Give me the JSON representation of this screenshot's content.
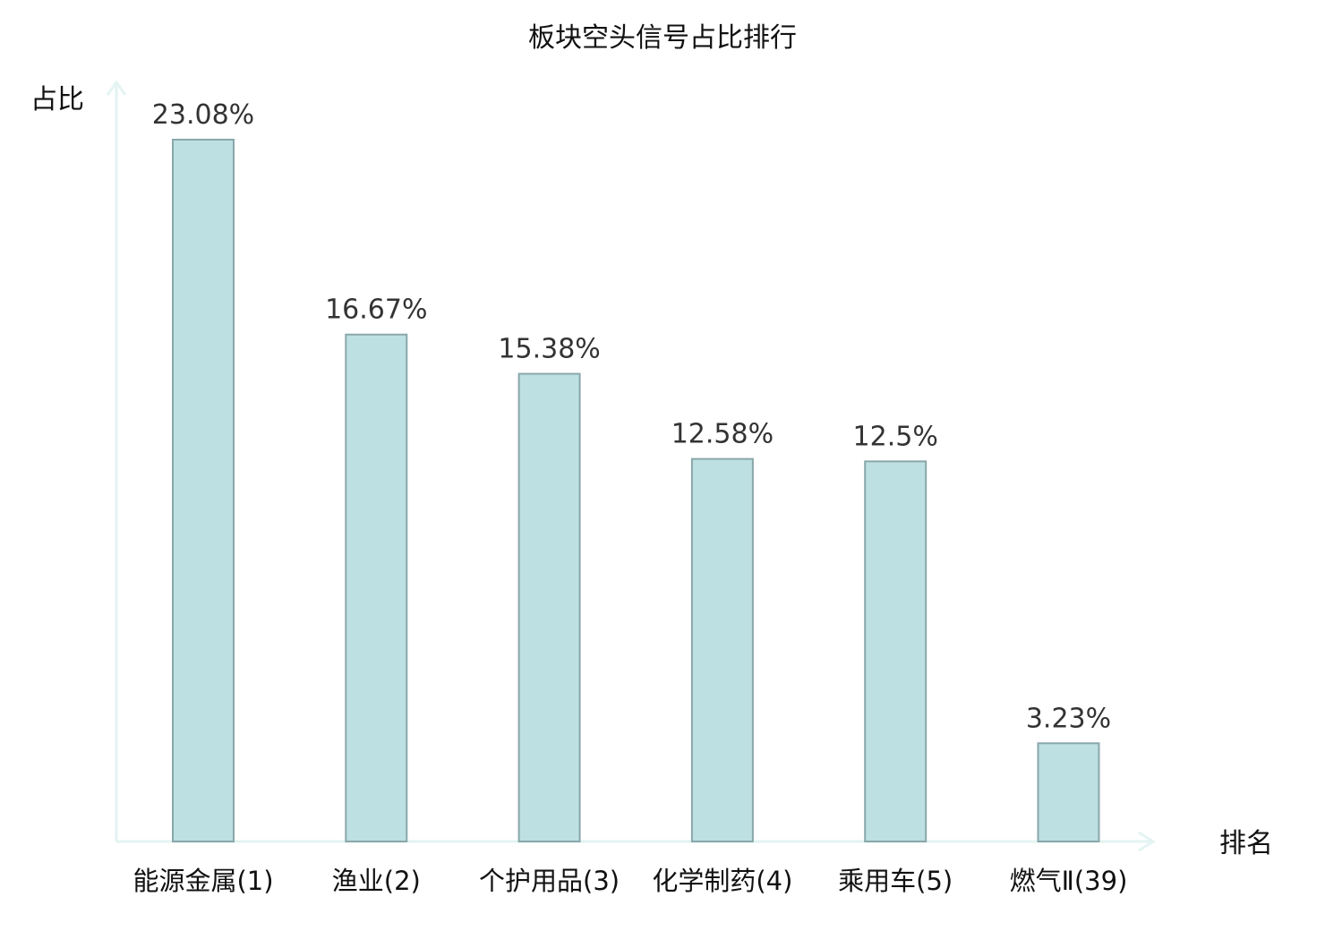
{
  "chart_data": {
    "type": "bar",
    "title": "板块空头信号占比排行",
    "ylabel": "占比",
    "xlabel": "排名",
    "categories": [
      "能源金属(1)",
      "渔业(2)",
      "个护用品(3)",
      "化学制药(4)",
      "乘用车(5)",
      "燃气Ⅱ(39)"
    ],
    "values": [
      23.08,
      16.67,
      15.38,
      12.58,
      12.5,
      3.23
    ],
    "value_labels": [
      "23.08%",
      "16.67%",
      "15.38%",
      "12.58%",
      "12.5%",
      "3.23%"
    ],
    "highlight_index": 5,
    "ylim": [
      0,
      23.08
    ],
    "grid": false,
    "colors": {
      "bar_fill": "#bde0e3",
      "bar_stroke": "#8aa7aa",
      "axis": "#e3f4f2",
      "highlight_text": "#e0262a",
      "normal_text": "#111111",
      "value_text": "#333333"
    }
  }
}
